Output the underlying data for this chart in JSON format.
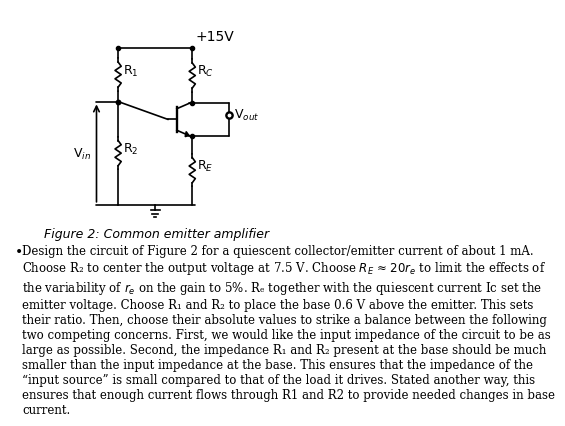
{
  "title": "Figure 2: Common emitter amplifier",
  "title_style": "italic",
  "supply_label": "+15V",
  "vin_label": "V$_{in}$",
  "vout_label": "V$_{out}$",
  "r1_label": "R$_1$",
  "r2_label": "R$_2$",
  "rc_label": "R$_C$",
  "re_label": "R$_E$",
  "bullet_text": "Design the circuit of Figure 2 for a quiescent collector/emitter current of about 1 mA.\nChoose R₂ to center the output voltage at 7.5 V. Choose Rₑ ≈ 20rₑ to limit the effects of\nthe variability of rₑ on the gain to 5%. Rₑ together with the quiescent current Ic set the\nemitter voltage. Choose R₁ and R₂ to place the base 0.6 V above the emitter. This sets\ntheir ratio. Then, choose their absolute values to strike a balance between the following\ntwo competing concerns. First, we would like the input impedance of the circuit to be as\nlarge as possible. Second, the impedance R₁ and R₂ present at the base should be much\nsmaller than the input impedance at the base. This ensures that the impedance of the\n“input source” is small compared to that of the load it drives. Stated another way, this\nensures that enough current flows through R1 and R2 to provide needed changes in base\ncurrent.",
  "background_color": "#ffffff",
  "line_color": "#000000",
  "text_color": "#000000",
  "font_size_caption": 9,
  "font_size_body": 9
}
